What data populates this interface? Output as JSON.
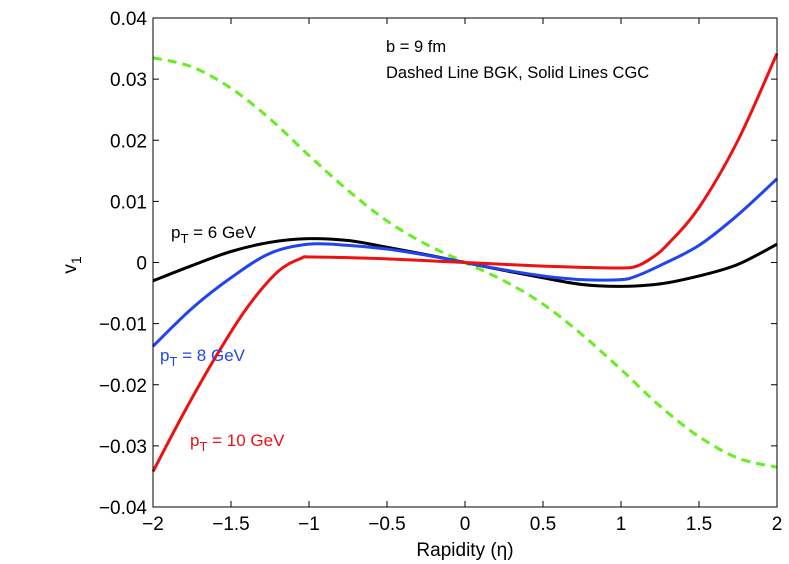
{
  "chart_data": {
    "type": "line",
    "title": "",
    "xlabel": "Rapidity (η)",
    "ylabel_main": "v",
    "ylabel_sub": "1",
    "xlim": [
      -2,
      2
    ],
    "ylim": [
      -0.04,
      0.04
    ],
    "xticks": [
      -2,
      -1.5,
      -1,
      -0.5,
      0,
      0.5,
      1,
      1.5,
      2
    ],
    "xtick_labels": [
      "−2",
      "−1.5",
      "−1",
      "−0.5",
      "0",
      "0.5",
      "1",
      "1.5",
      "2"
    ],
    "yticks": [
      -0.04,
      -0.03,
      -0.02,
      -0.01,
      0,
      0.01,
      0.02,
      0.03,
      0.04
    ],
    "ytick_labels": [
      "−0.04",
      "−0.03",
      "−0.02",
      "−0.01",
      "0",
      "0.01",
      "0.02",
      "0.03",
      "0.04"
    ],
    "grid": false,
    "annotations": [
      {
        "text": "b = 9 fm"
      },
      {
        "text": "Dashed Line BGK, Solid Lines CGC"
      }
    ],
    "series": [
      {
        "name": "BGK",
        "color": "#66ee22",
        "dashed": true,
        "x": [
          -2,
          -1.75,
          -1.5,
          -1.25,
          -1,
          -0.75,
          -0.5,
          -0.25,
          0,
          0.25,
          0.5,
          0.75,
          1,
          1.25,
          1.5,
          1.75,
          2
        ],
        "values": [
          0.0335,
          0.032,
          0.0285,
          0.0235,
          0.0175,
          0.0118,
          0.0068,
          0.003,
          0,
          -0.003,
          -0.0068,
          -0.0118,
          -0.0175,
          -0.0235,
          -0.0285,
          -0.032,
          -0.0335
        ]
      },
      {
        "name": "pT = 6 GeV",
        "label_main": "p",
        "label_sub": "T",
        "label_rest": " = 6 GeV",
        "color": "#000000",
        "dashed": false,
        "x": [
          -2,
          -1.75,
          -1.5,
          -1.25,
          -1,
          -0.75,
          -0.5,
          -0.25,
          0,
          0.25,
          0.5,
          0.75,
          1,
          1.25,
          1.5,
          1.75,
          2
        ],
        "values": [
          -0.003,
          -0.0005,
          0.0018,
          0.0033,
          0.0039,
          0.0036,
          0.0025,
          0.0013,
          0,
          -0.0013,
          -0.0025,
          -0.0036,
          -0.0039,
          -0.0035,
          -0.0022,
          -0.0003,
          0.003
        ]
      },
      {
        "name": "pT = 8 GeV",
        "label_main": "p",
        "label_sub": "T",
        "label_rest": " = 8 GeV",
        "color": "#2244ee",
        "dashed": false,
        "x": [
          -2,
          -1.75,
          -1.5,
          -1.25,
          -1,
          -0.75,
          -0.5,
          -0.25,
          0,
          0.25,
          0.5,
          0.75,
          1,
          1.1,
          1.25,
          1.5,
          1.75,
          2
        ],
        "values": [
          -0.0137,
          -0.0075,
          -0.0025,
          0.0015,
          0.003,
          0.0028,
          0.0022,
          0.0012,
          0,
          -0.0012,
          -0.0022,
          -0.0028,
          -0.0028,
          -0.0022,
          -0.0005,
          0.0028,
          0.0078,
          0.0137
        ]
      },
      {
        "name": "pT = 10 GeV",
        "label_main": "p",
        "label_sub": "T",
        "label_rest": " = 10 GeV",
        "color": "#ee1111",
        "dashed": false,
        "x": [
          -2,
          -1.8,
          -1.6,
          -1.4,
          -1.2,
          -1.05,
          -1,
          -0.75,
          -0.5,
          -0.25,
          0,
          0.25,
          0.5,
          0.75,
          1,
          1.1,
          1.2,
          1.3,
          1.5,
          1.75,
          2
        ],
        "values": [
          -0.0342,
          -0.0245,
          -0.0155,
          -0.0075,
          -0.0015,
          0.0007,
          0.0009,
          0.0008,
          0.0006,
          0.0003,
          0,
          -0.0003,
          -0.0006,
          -0.0008,
          -0.0009,
          -0.0006,
          0.0008,
          0.003,
          0.009,
          0.02,
          0.0342
        ]
      }
    ]
  }
}
